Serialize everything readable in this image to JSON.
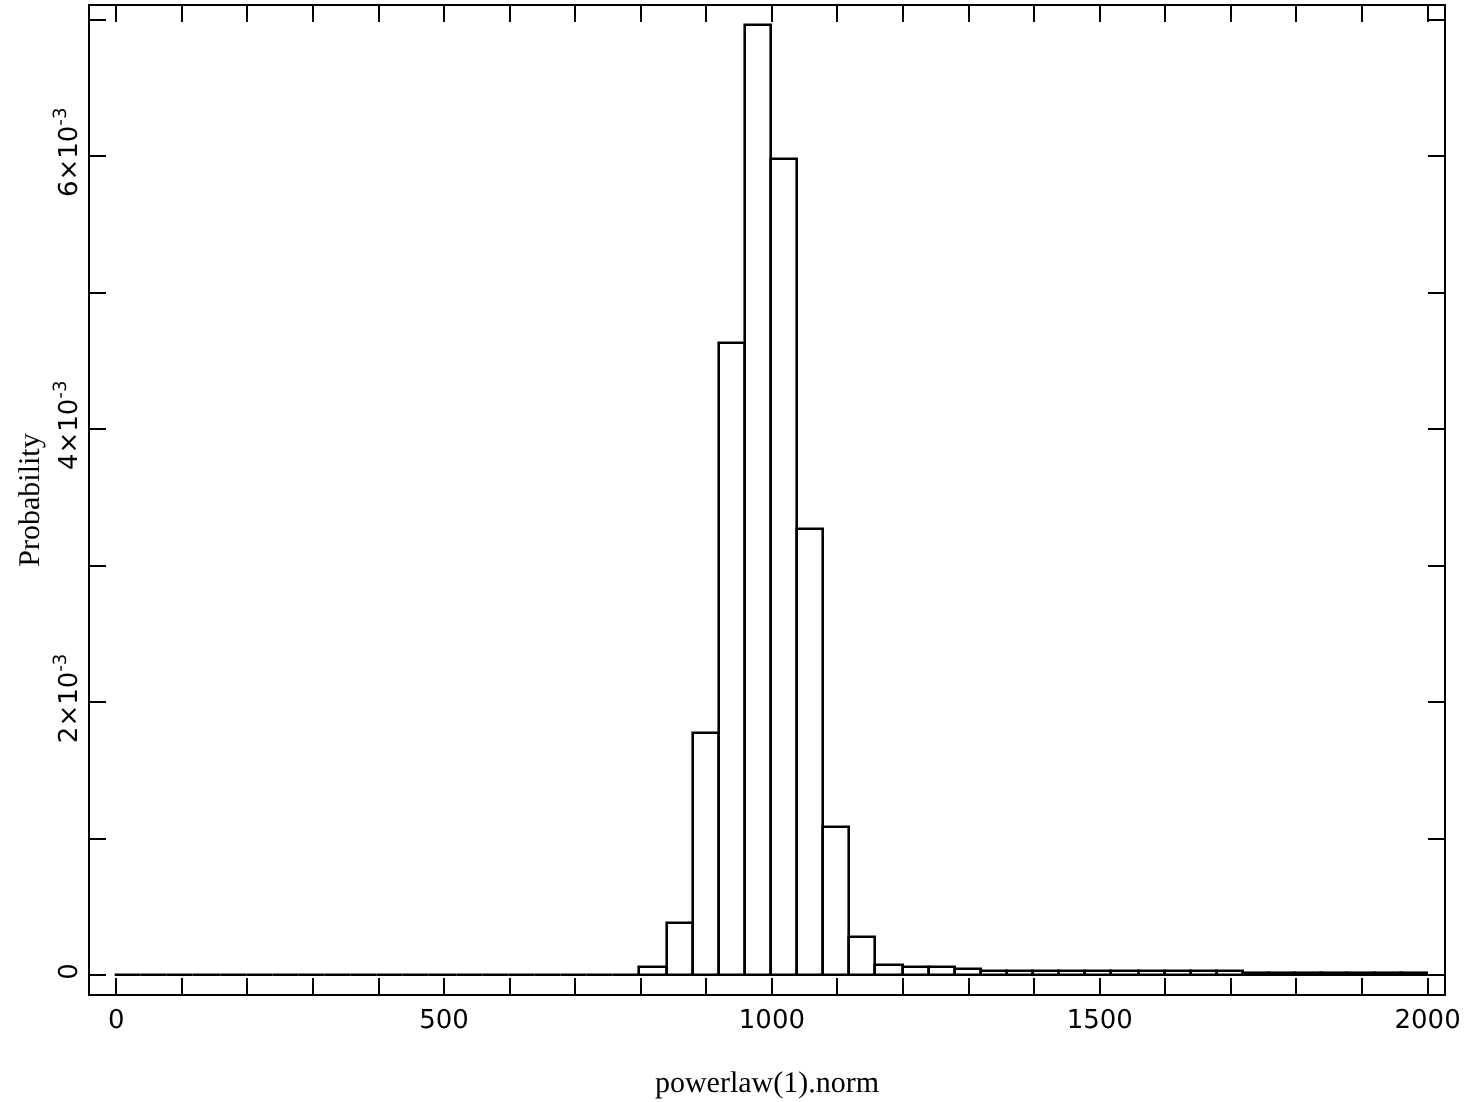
{
  "chart_data": {
    "type": "histogram",
    "xlabel": "powerlaw(1).norm",
    "ylabel": "Probability",
    "bins": [
      0,
      40,
      80,
      120,
      160,
      200,
      240,
      280,
      320,
      360,
      400,
      440,
      480,
      520,
      560,
      600,
      640,
      680,
      720,
      760,
      800,
      840,
      880,
      920,
      960,
      1000,
      1040,
      1080,
      1120,
      1160,
      1200,
      1240,
      1280,
      1320,
      1360,
      1400,
      1440,
      1480,
      1520,
      1560,
      1600,
      1640,
      1680,
      1720,
      1760,
      1800,
      1840,
      1880,
      1920,
      1960,
      2000
    ],
    "values": [
      0,
      0,
      0,
      0,
      0,
      0,
      0,
      0,
      0,
      0,
      0,
      0,
      0,
      0,
      0,
      0,
      0,
      0,
      0,
      0,
      6e-05,
      0.00037,
      0.00177,
      0.00463,
      0.00696,
      0.00597,
      0.00326,
      0.00108,
      0.00028,
      7e-05,
      5e-05,
      5e-05,
      4e-05,
      2e-05,
      3e-05,
      2e-05,
      2e-05,
      2e-05,
      2e-05,
      2e-05,
      2e-05,
      2e-05,
      2e-05,
      1e-05,
      1e-05,
      1e-05,
      1e-05,
      1e-05,
      1e-05,
      1e-05
    ],
    "color": "#000000",
    "xlim": [
      -40,
      2025
    ],
    "xticks": [
      0,
      {
        "value": 100,
        "label": null
      },
      {
        "value": 200,
        "label": null
      },
      {
        "value": 300,
        "label": null
      },
      {
        "value": 400,
        "label": null
      },
      500,
      {
        "value": 600,
        "label": null
      },
      {
        "value": 700,
        "label": null
      },
      {
        "value": 800,
        "label": null
      },
      {
        "value": 900,
        "label": null
      },
      1000,
      {
        "value": 1100,
        "label": null
      },
      {
        "value": 1200,
        "label": null
      },
      {
        "value": 1300,
        "label": null
      },
      {
        "value": 1400,
        "label": null
      },
      1500,
      {
        "value": 1600,
        "label": null
      },
      {
        "value": 1700,
        "label": null
      },
      {
        "value": 1800,
        "label": null
      },
      {
        "value": 1900,
        "label": null
      },
      2000
    ],
    "ylim": [
      -0.000137,
      0.0071
    ],
    "yticks": [
      0,
      {
        "value": 0.001,
        "label": null
      },
      {
        "value": 0.002,
        "label": "2×10$^{-3}$"
      },
      {
        "value": 0.003,
        "label": null
      },
      {
        "value": 0.004,
        "label": "4×10$^{-3}$"
      },
      {
        "value": 0.005,
        "label": null
      },
      {
        "value": 0.006,
        "label": "6×10$^{-3}$"
      },
      {
        "value": 0.007,
        "label": null
      }
    ],
    "grid": false
  }
}
